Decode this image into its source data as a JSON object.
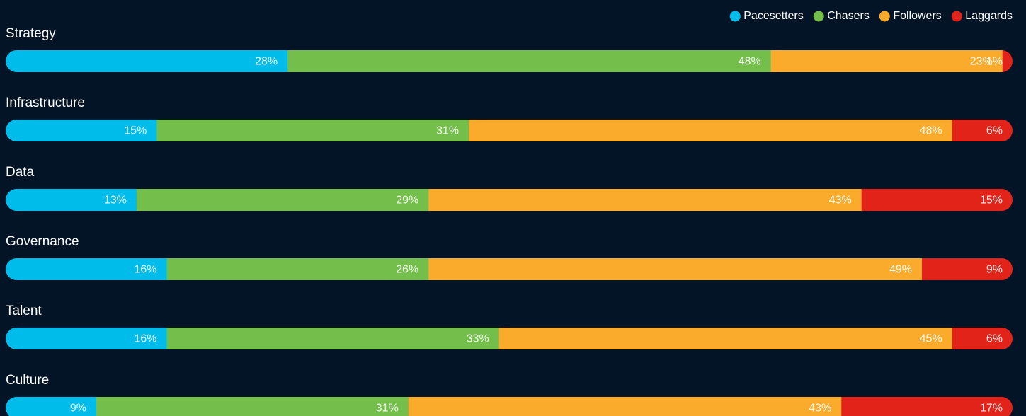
{
  "chart_data": {
    "type": "bar",
    "orientation": "horizontal",
    "stacked": true,
    "legend": "top-right",
    "categories": [
      "Strategy",
      "Infrastructure",
      "Data",
      "Governance",
      "Talent",
      "Culture"
    ],
    "series": [
      {
        "name": "Pacesetters",
        "color": "#00bceb",
        "values": [
          28,
          15,
          13,
          16,
          16,
          9
        ],
        "value_labels": [
          "28%",
          "15%",
          "13%",
          "16%",
          "16%",
          "9%"
        ]
      },
      {
        "name": "Chasers",
        "color": "#74bf4b",
        "values": [
          48,
          31,
          29,
          26,
          33,
          31
        ],
        "value_labels": [
          "48%",
          "31%",
          "29%",
          "26%",
          "33%",
          "31%"
        ]
      },
      {
        "name": "Followers",
        "color": "#fbab2c",
        "values": [
          23,
          48,
          43,
          49,
          45,
          43
        ],
        "value_labels": [
          "23%",
          "48%",
          "43%",
          "49%",
          "45%",
          "43%"
        ]
      },
      {
        "name": "Laggards",
        "color": "#e2231a",
        "values": [
          1,
          6,
          15,
          9,
          6,
          17
        ],
        "value_labels": [
          "1%",
          "6%",
          "15%",
          "9%",
          "6%",
          "17%"
        ]
      }
    ]
  }
}
